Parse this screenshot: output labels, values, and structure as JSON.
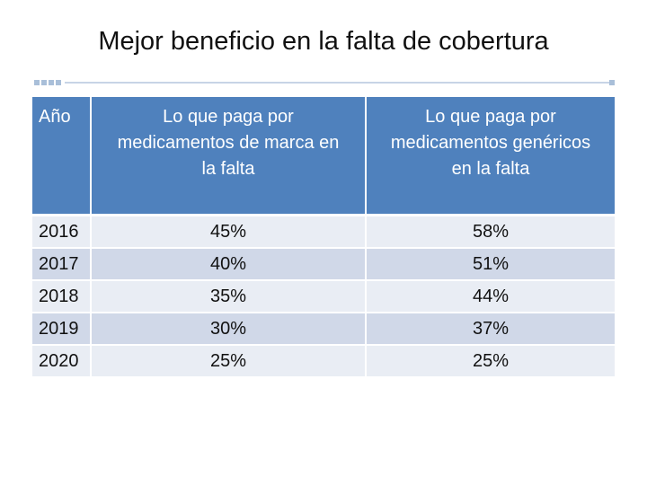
{
  "title": "Mejor beneficio en la falta de cobertura",
  "table": {
    "headers": {
      "year": "Año",
      "brand_line1": "Lo que paga por",
      "brand_line2": "medicamentos de marca en",
      "brand_line3": "la falta",
      "generic_line1": "Lo que paga por",
      "generic_line2": "medicamentos genéricos",
      "generic_line3": "en la falta"
    },
    "rows": [
      {
        "year": "2016",
        "brand": "45%",
        "generic": "58%"
      },
      {
        "year": "2017",
        "brand": "40%",
        "generic": "51%"
      },
      {
        "year": "2018",
        "brand": "35%",
        "generic": "44%"
      },
      {
        "year": "2019",
        "brand": "30%",
        "generic": "37%"
      },
      {
        "year": "2020",
        "brand": "25%",
        "generic": "25%"
      }
    ]
  },
  "colors": {
    "header_bg": "#4f81bd",
    "row_light": "#e9edf4",
    "row_dark": "#d0d8e8",
    "accent": "#a9bfd9"
  }
}
